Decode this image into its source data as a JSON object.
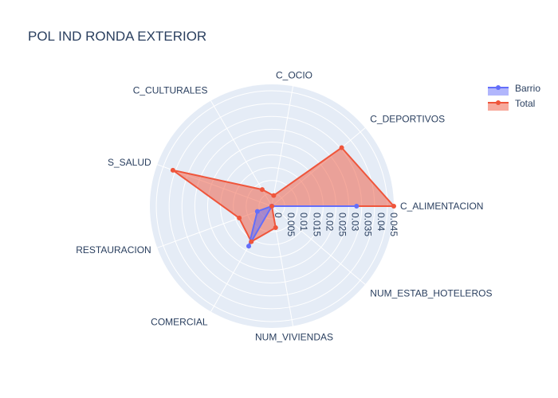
{
  "chart_data": {
    "type": "radar",
    "title": "POL IND RONDA EXTERIOR",
    "axes": [
      "C_ALIMENTACION",
      "C_DEPORTIVOS",
      "C_OCIO",
      "C_CULTURALES",
      "S_SALUD",
      "RESTAURACION",
      "COMERCIAL",
      "NUM_VIVIENDAS",
      "NUM_ESTAB_HOTELEROS"
    ],
    "radial_ticks": [
      "0",
      "0.005",
      "0.01",
      "0.015",
      "0.02",
      "0.025",
      "0.03",
      "0.035",
      "0.04",
      "0.045"
    ],
    "radial_range": [
      0,
      0.0475
    ],
    "series": [
      {
        "name": "Barrio",
        "values": [
          0.033,
          0.0,
          0.0,
          0.0,
          0.0,
          0.006,
          0.018,
          0.0,
          0.0
        ],
        "color": "#636efa"
      },
      {
        "name": "Total",
        "values": [
          0.0475,
          0.0355,
          0.0042,
          0.0075,
          0.041,
          0.0135,
          0.016,
          0.0085,
          0.0
        ],
        "color": "#ef553b"
      }
    ],
    "legend_position": "top-right"
  },
  "colors": {
    "polar_bg": "#e5ecf6",
    "grid": "#ffffff",
    "text": "#2a3f5f"
  }
}
